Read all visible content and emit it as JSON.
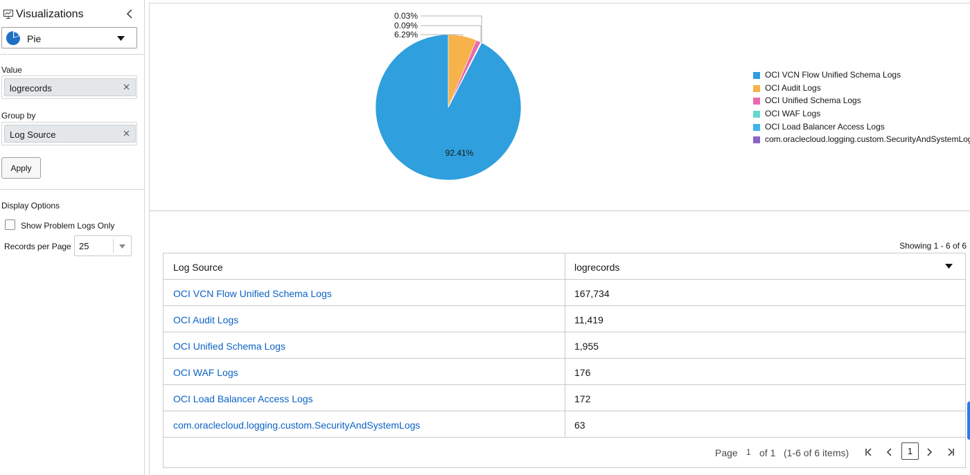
{
  "left_panel": {
    "title": "Visualizations",
    "viz_type": "Pie",
    "value_label": "Value",
    "value_chip": "logrecords",
    "group_label": "Group by",
    "group_chip": "Log Source",
    "apply_label": "Apply",
    "display_options_label": "Display Options",
    "problem_logs_label": "Show Problem Logs Only",
    "records_per_page_label": "Records per Page",
    "records_per_page_value": "25"
  },
  "chart_data": {
    "type": "pie",
    "slices": [
      {
        "label": "OCI VCN Flow Unified Schema Logs",
        "value": 167734,
        "percent_label": "92.41%",
        "color": "#2f9fdd"
      },
      {
        "label": "OCI Audit Logs",
        "value": 11419,
        "percent_label": "6.29%",
        "color": "#f7b24b"
      },
      {
        "label": "OCI Unified Schema Logs",
        "value": 1955,
        "percent_label": "",
        "color": "#e96bae"
      },
      {
        "label": "OCI WAF Logs",
        "value": 176,
        "percent_label": "0.09%",
        "color": "#67d8d0"
      },
      {
        "label": "OCI Load Balancer Access Logs",
        "value": 172,
        "percent_label": "",
        "color": "#3db5ea"
      },
      {
        "label": "com.oraclecloud.logging.custom.SecurityAndSystemLogs",
        "value": 63,
        "percent_label": "0.03%",
        "color": "#8a63c8"
      }
    ],
    "legend_position": "right"
  },
  "table": {
    "showing_text": "Showing 1 - 6 of 6",
    "headers": [
      "Log Source",
      "logrecords"
    ],
    "rows": [
      {
        "source": "OCI VCN Flow Unified Schema Logs",
        "count": "167,734"
      },
      {
        "source": "OCI Audit Logs",
        "count": "11,419"
      },
      {
        "source": "OCI Unified Schema Logs",
        "count": "1,955"
      },
      {
        "source": "OCI WAF Logs",
        "count": "176"
      },
      {
        "source": "OCI Load Balancer Access Logs",
        "count": "172"
      },
      {
        "source": "com.oraclecloud.logging.custom.SecurityAndSystemLogs",
        "count": "63"
      }
    ]
  },
  "pager": {
    "page_label": "Page",
    "current_page": "1",
    "of_text": "of 1",
    "items_text": "(1-6 of 6 items)",
    "page_box": "1"
  },
  "icons": {
    "title_icon": "monitor-icon",
    "collapse": "chevron-left-icon",
    "viz": "pie-chart-icon",
    "dropdown": "caret-down-icon",
    "remove": "close-icon",
    "first": "first-page-icon",
    "prev": "prev-page-icon",
    "next": "next-page-icon",
    "last": "last-page-icon"
  }
}
